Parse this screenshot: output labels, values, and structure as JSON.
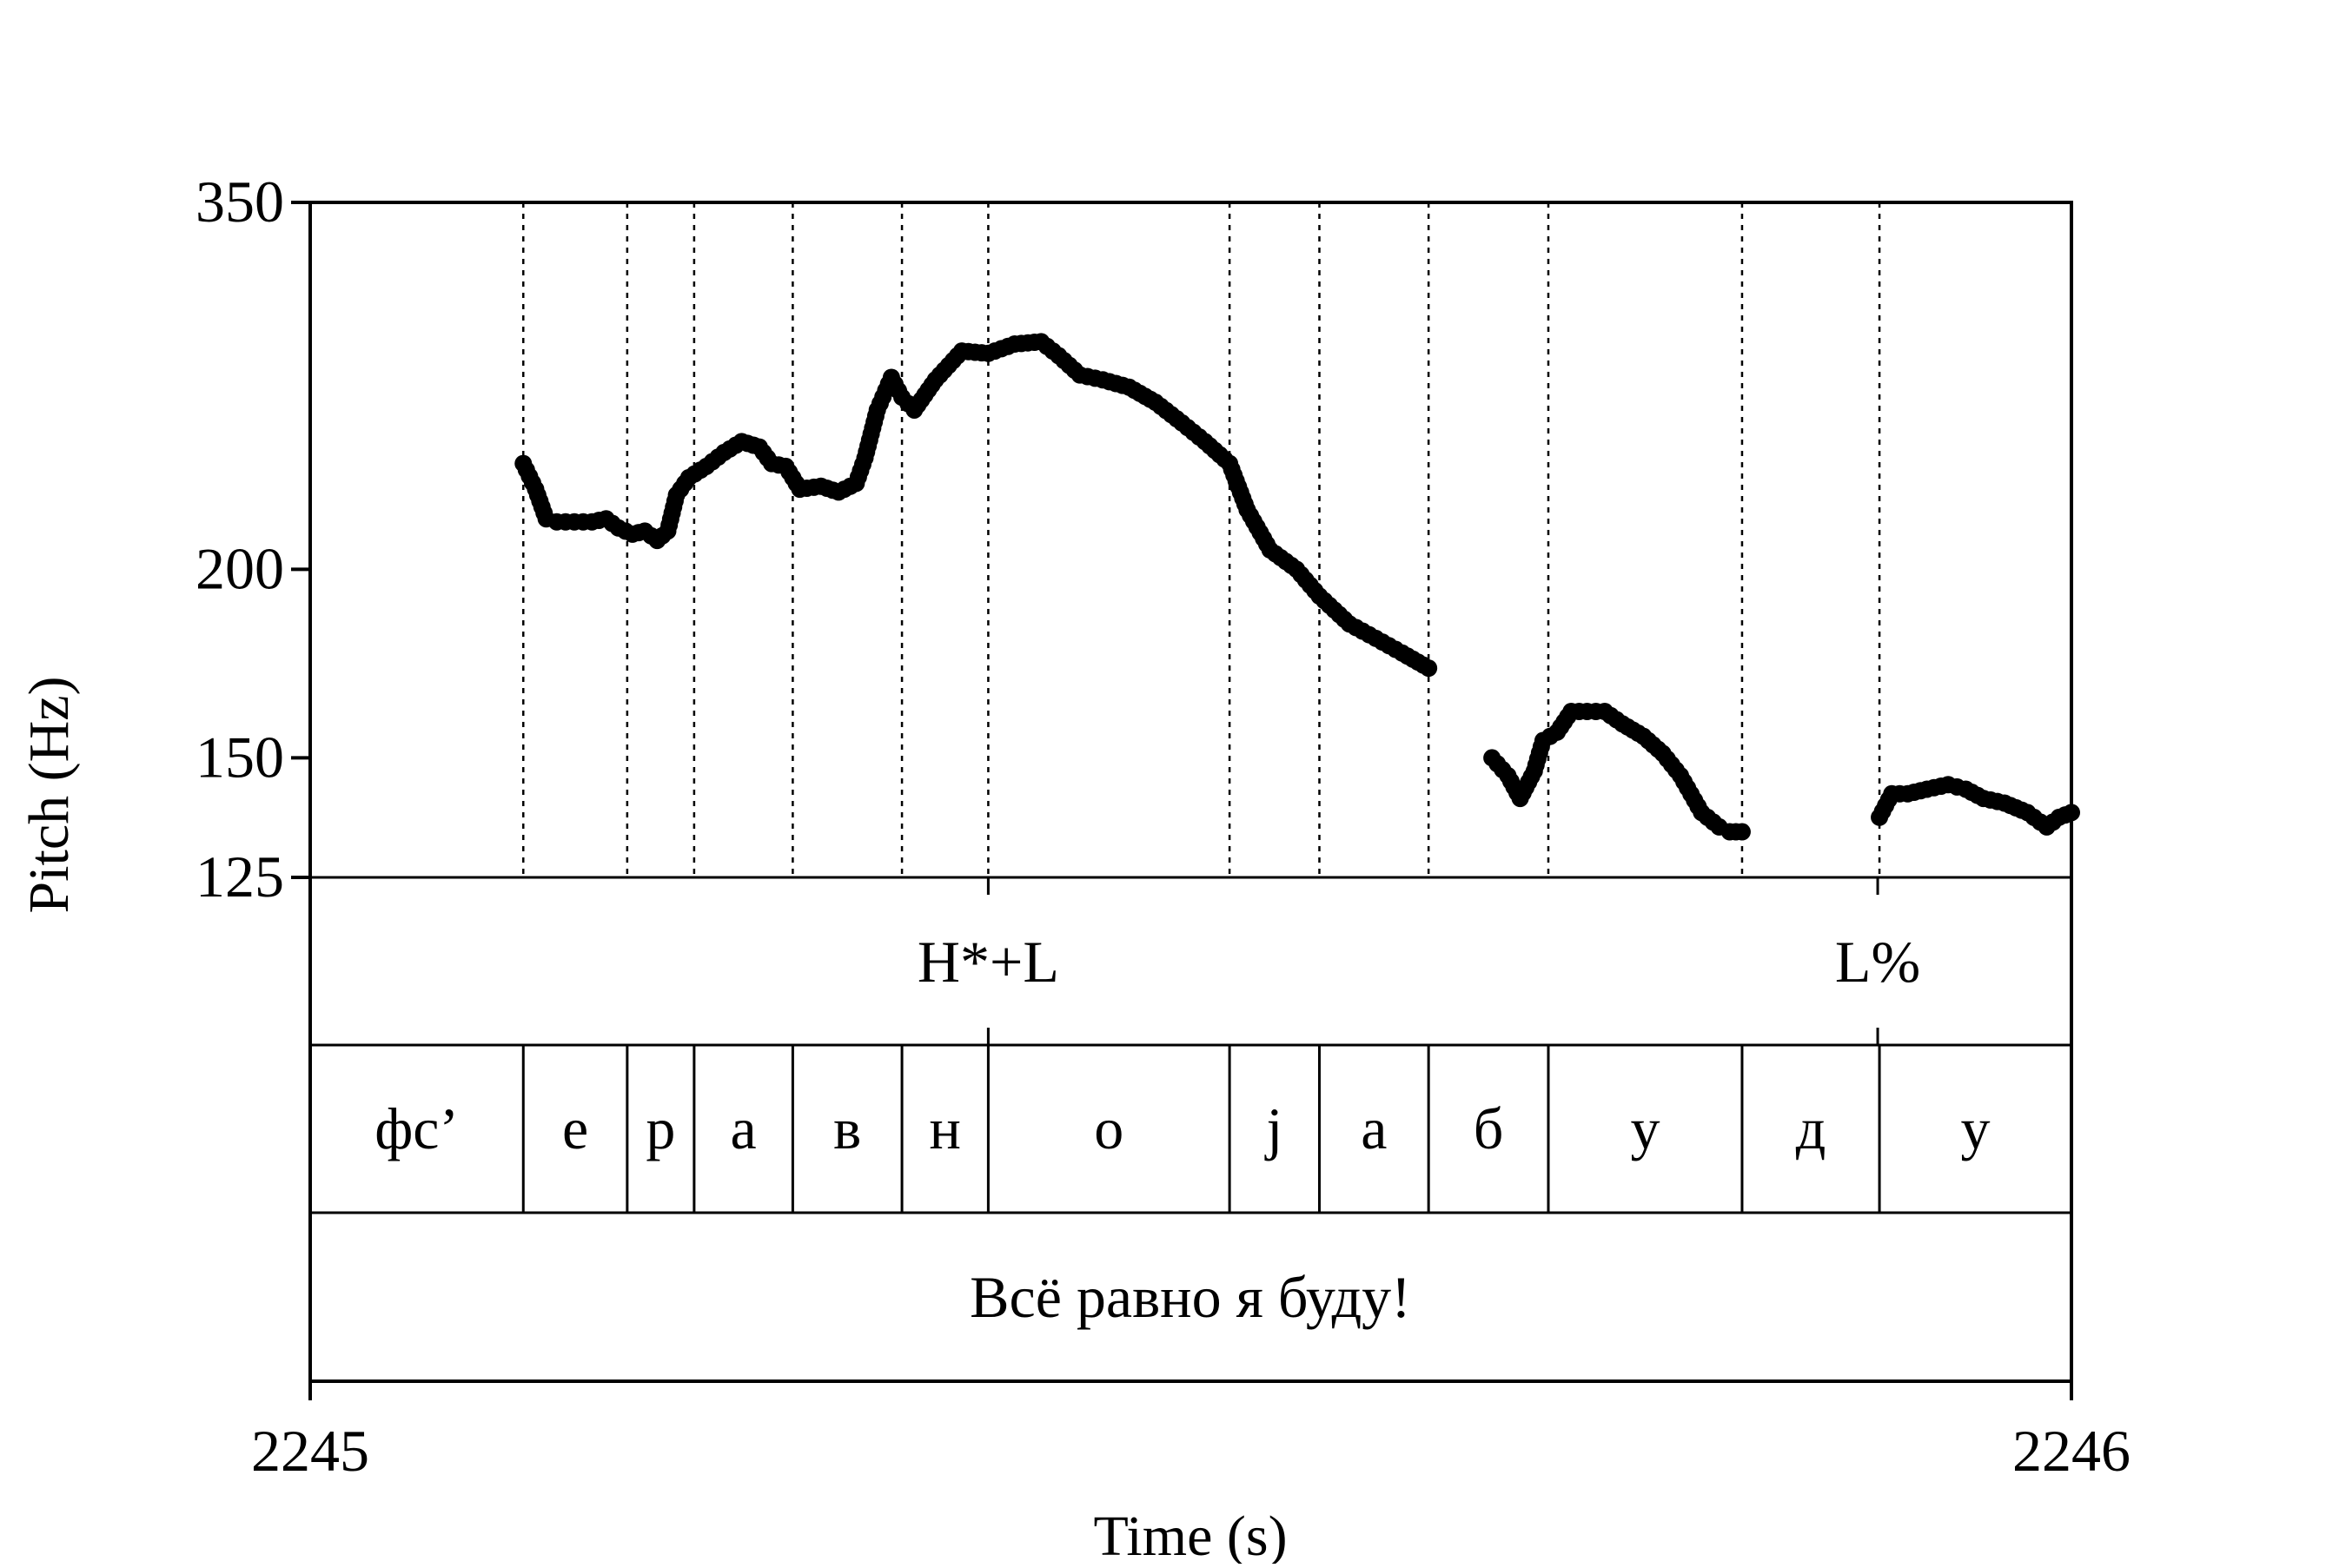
{
  "chart_data": {
    "type": "scatter",
    "xlabel": "Time (s)",
    "ylabel": "Pitch (Hz)",
    "xlim": [
      2245,
      2246
    ],
    "ylim": [
      125,
      350
    ],
    "y_scale": "log",
    "x_ticks": [
      "2245",
      "2246"
    ],
    "y_ticks": [
      350,
      200,
      150,
      125
    ],
    "grid": "dotted vertical lines at segment boundaries",
    "tones": [
      {
        "label": "H*+L",
        "t": 2245.385
      },
      {
        "label": "L%",
        "t": 2245.89
      }
    ],
    "segments": [
      {
        "label": "фс’",
        "start": 2245.0,
        "end": 2245.121
      },
      {
        "label": "е",
        "start": 2245.121,
        "end": 2245.18
      },
      {
        "label": "р",
        "start": 2245.18,
        "end": 2245.218
      },
      {
        "label": "а",
        "start": 2245.218,
        "end": 2245.274
      },
      {
        "label": "в",
        "start": 2245.274,
        "end": 2245.336
      },
      {
        "label": "н",
        "start": 2245.336,
        "end": 2245.385
      },
      {
        "label": "о",
        "start": 2245.385,
        "end": 2245.522
      },
      {
        "label": "j",
        "start": 2245.522,
        "end": 2245.573
      },
      {
        "label": "а",
        "start": 2245.573,
        "end": 2245.635
      },
      {
        "label": "б",
        "start": 2245.635,
        "end": 2245.703
      },
      {
        "label": "у",
        "start": 2245.703,
        "end": 2245.813
      },
      {
        "label": "д",
        "start": 2245.813,
        "end": 2245.891
      },
      {
        "label": "у",
        "start": 2245.891,
        "end": 2246.0
      }
    ],
    "sentence": "Всё равно я буду!",
    "series": [
      {
        "points": [
          [
            2245.121,
            235
          ],
          [
            2245.128,
            226
          ],
          [
            2245.134,
            216
          ],
          [
            2245.14,
            215
          ],
          [
            2245.15,
            215
          ],
          [
            2245.16,
            215
          ],
          [
            2245.168,
            216
          ],
          [
            2245.175,
            213
          ],
          [
            2245.183,
            211
          ],
          [
            2245.19,
            212
          ],
          [
            2245.197,
            209
          ],
          [
            2245.203,
            212
          ],
          [
            2245.208,
            224
          ],
          [
            2245.215,
            230
          ],
          [
            2245.225,
            234
          ],
          [
            2245.235,
            239
          ],
          [
            2245.245,
            243
          ],
          [
            2245.255,
            241
          ],
          [
            2245.262,
            235
          ],
          [
            2245.27,
            234
          ],
          [
            2245.278,
            226
          ],
          [
            2245.29,
            227
          ],
          [
            2245.3,
            225
          ],
          [
            2245.31,
            228
          ],
          [
            2245.315,
            237
          ],
          [
            2245.322,
            255
          ],
          [
            2245.33,
            268
          ],
          [
            2245.336,
            260
          ],
          [
            2245.343,
            255
          ],
          [
            2245.355,
            267
          ],
          [
            2245.37,
            279
          ],
          [
            2245.385,
            278
          ],
          [
            2245.4,
            282
          ],
          [
            2245.415,
            283
          ],
          [
            2245.425,
            277
          ],
          [
            2245.437,
            269
          ],
          [
            2245.45,
            267
          ],
          [
            2245.465,
            264
          ],
          [
            2245.48,
            258
          ],
          [
            2245.495,
            250
          ],
          [
            2245.508,
            243
          ],
          [
            2245.522,
            235
          ],
          [
            2245.532,
            219
          ],
          [
            2245.545,
            206
          ],
          [
            2245.56,
            200
          ],
          [
            2245.573,
            192
          ],
          [
            2245.59,
            184
          ],
          [
            2245.605,
            180
          ],
          [
            2245.62,
            176
          ],
          [
            2245.635,
            172
          ]
        ]
      },
      {
        "points": [
          [
            2245.671,
            150
          ],
          [
            2245.68,
            146
          ],
          [
            2245.687,
            141
          ],
          [
            2245.695,
            147
          ],
          [
            2245.7,
            154
          ],
          [
            2245.708,
            156
          ],
          [
            2245.716,
            161
          ],
          [
            2245.725,
            161
          ],
          [
            2245.735,
            161
          ],
          [
            2245.745,
            158
          ],
          [
            2245.757,
            155
          ],
          [
            2245.768,
            151
          ],
          [
            2245.778,
            146
          ],
          [
            2245.79,
            138
          ],
          [
            2245.8,
            135
          ],
          [
            2245.806,
            134
          ],
          [
            2245.813,
            134
          ]
        ]
      },
      {
        "points": [
          [
            2245.891,
            137
          ],
          [
            2245.898,
            142
          ],
          [
            2245.907,
            142
          ],
          [
            2245.918,
            143
          ],
          [
            2245.93,
            144
          ],
          [
            2245.94,
            143
          ],
          [
            2245.95,
            141
          ],
          [
            2245.962,
            140
          ],
          [
            2245.975,
            138
          ],
          [
            2245.986,
            135
          ],
          [
            2245.993,
            137
          ],
          [
            2246.0,
            138
          ]
        ]
      }
    ]
  }
}
